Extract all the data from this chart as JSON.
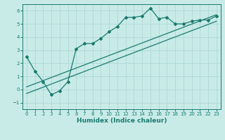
{
  "xlabel": "Humidex (Indice chaleur)",
  "ylabel": "",
  "bg_color": "#c8ebe8",
  "grid_color": "#b0d8d4",
  "line_color": "#1a7a6e",
  "xlim": [
    -0.5,
    23.5
  ],
  "ylim": [
    -1.5,
    6.5
  ],
  "xticks": [
    0,
    1,
    2,
    3,
    4,
    5,
    6,
    7,
    8,
    9,
    10,
    11,
    12,
    13,
    14,
    15,
    16,
    17,
    18,
    19,
    20,
    21,
    22,
    23
  ],
  "yticks": [
    -1,
    0,
    1,
    2,
    3,
    4,
    5,
    6
  ],
  "line1_x": [
    0,
    1,
    2,
    3,
    4,
    5,
    6,
    7,
    8,
    9,
    10,
    11,
    12,
    13,
    14,
    15,
    16,
    17,
    18,
    19,
    20,
    21,
    22,
    23
  ],
  "line1_y": [
    2.5,
    1.4,
    0.6,
    -0.4,
    -0.1,
    0.6,
    3.1,
    3.5,
    3.5,
    3.9,
    4.4,
    4.8,
    5.5,
    5.5,
    5.6,
    6.2,
    5.4,
    5.5,
    5.0,
    5.0,
    5.2,
    5.3,
    5.3,
    5.6
  ],
  "line2_x": [
    0,
    23
  ],
  "line2_y": [
    0.2,
    5.7
  ],
  "line3_x": [
    0,
    23
  ],
  "line3_y": [
    -0.3,
    5.2
  ]
}
